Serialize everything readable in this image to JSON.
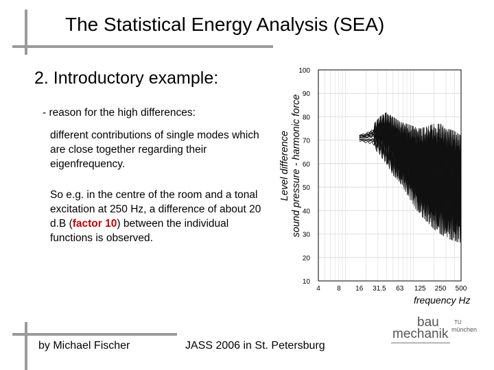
{
  "slide": {
    "title": "The Statistical Energy Analysis (SEA)",
    "subtitle": "2. Introductory example:",
    "reason": "- reason for the high differences:",
    "paragraph1": "different contributions of single modes which are close together regarding their eigenfrequency.",
    "paragraph2_pre": "So e.g. in the centre of the room and a tonal excitation at 250 Hz, a difference of about 20 d.B (",
    "paragraph2_highlight": "factor 10",
    "paragraph2_post": ") between the individual functions is observed.",
    "highlight_color": "#c00000"
  },
  "footer": {
    "author": "by Michael Fischer",
    "event": "JASS 2006 in St. Petersburg"
  },
  "logo": {
    "line1": "bau",
    "line2": "mechanik",
    "small1": "TU",
    "small2": "münchen"
  },
  "chart_data": {
    "type": "line",
    "ylabel_line1": "Level difference",
    "ylabel_line2": "sound pressure - harmonic force",
    "xlabel": "frequency Hz",
    "x_scale": "log",
    "x_ticks": [
      "4",
      "8",
      "16",
      "31.5",
      "63",
      "125",
      "250",
      "500"
    ],
    "y_ticks": [
      10,
      20,
      30,
      40,
      50,
      60,
      70,
      80,
      90,
      100
    ],
    "ylim": [
      10,
      100
    ],
    "xlim": [
      4,
      500
    ],
    "grid": true,
    "series_description_note": "",
    "curve_start_hz": 16,
    "curve_band": [
      {
        "x": 16,
        "ymin": 69,
        "ymax": 73
      },
      {
        "x": 20,
        "ymin": 68,
        "ymax": 74
      },
      {
        "x": 25,
        "ymin": 67,
        "ymax": 76
      },
      {
        "x": 31.5,
        "ymin": 64,
        "ymax": 80
      },
      {
        "x": 40,
        "ymin": 60,
        "ymax": 82
      },
      {
        "x": 50,
        "ymin": 55,
        "ymax": 80
      },
      {
        "x": 63,
        "ymin": 52,
        "ymax": 78
      },
      {
        "x": 80,
        "ymin": 47,
        "ymax": 77
      },
      {
        "x": 100,
        "ymin": 42,
        "ymax": 76
      },
      {
        "x": 125,
        "ymin": 38,
        "ymax": 75
      },
      {
        "x": 160,
        "ymin": 35,
        "ymax": 76
      },
      {
        "x": 200,
        "ymin": 32,
        "ymax": 77
      },
      {
        "x": 250,
        "ymin": 30,
        "ymax": 77
      },
      {
        "x": 315,
        "ymin": 28,
        "ymax": 75
      },
      {
        "x": 400,
        "ymin": 27,
        "ymax": 74
      },
      {
        "x": 500,
        "ymin": 26,
        "ymax": 72
      }
    ]
  }
}
